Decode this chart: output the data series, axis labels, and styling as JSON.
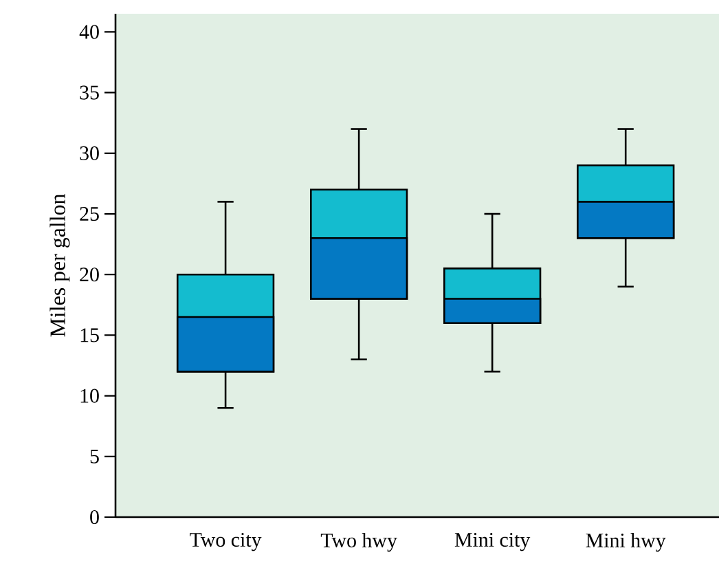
{
  "chart_data": {
    "type": "box",
    "ylabel": "Miles per gallon",
    "categories": [
      "Two city",
      "Two hwy",
      "Mini city",
      "Mini hwy"
    ],
    "color": "#14bccf",
    "series": [
      {
        "color": "#0479c3",
        "boxes": [
          {
            "low": 9,
            "q1": 12,
            "median": 16.5,
            "q3": 20,
            "high": 26
          },
          {
            "low": 13,
            "q1": 18,
            "median": 23,
            "q3": 27,
            "high": 32
          },
          {
            "low": 12,
            "q1": 16,
            "median": 18,
            "q3": 20.5,
            "high": 25
          },
          {
            "low": 19,
            "q1": 23,
            "median": 26,
            "q3": 29,
            "high": 32
          }
        ]
      }
    ],
    "ylim": [
      0,
      41.5
    ],
    "yticks": [
      0,
      5,
      10,
      15,
      20,
      25,
      30,
      35,
      40
    ],
    "grid": false
  }
}
